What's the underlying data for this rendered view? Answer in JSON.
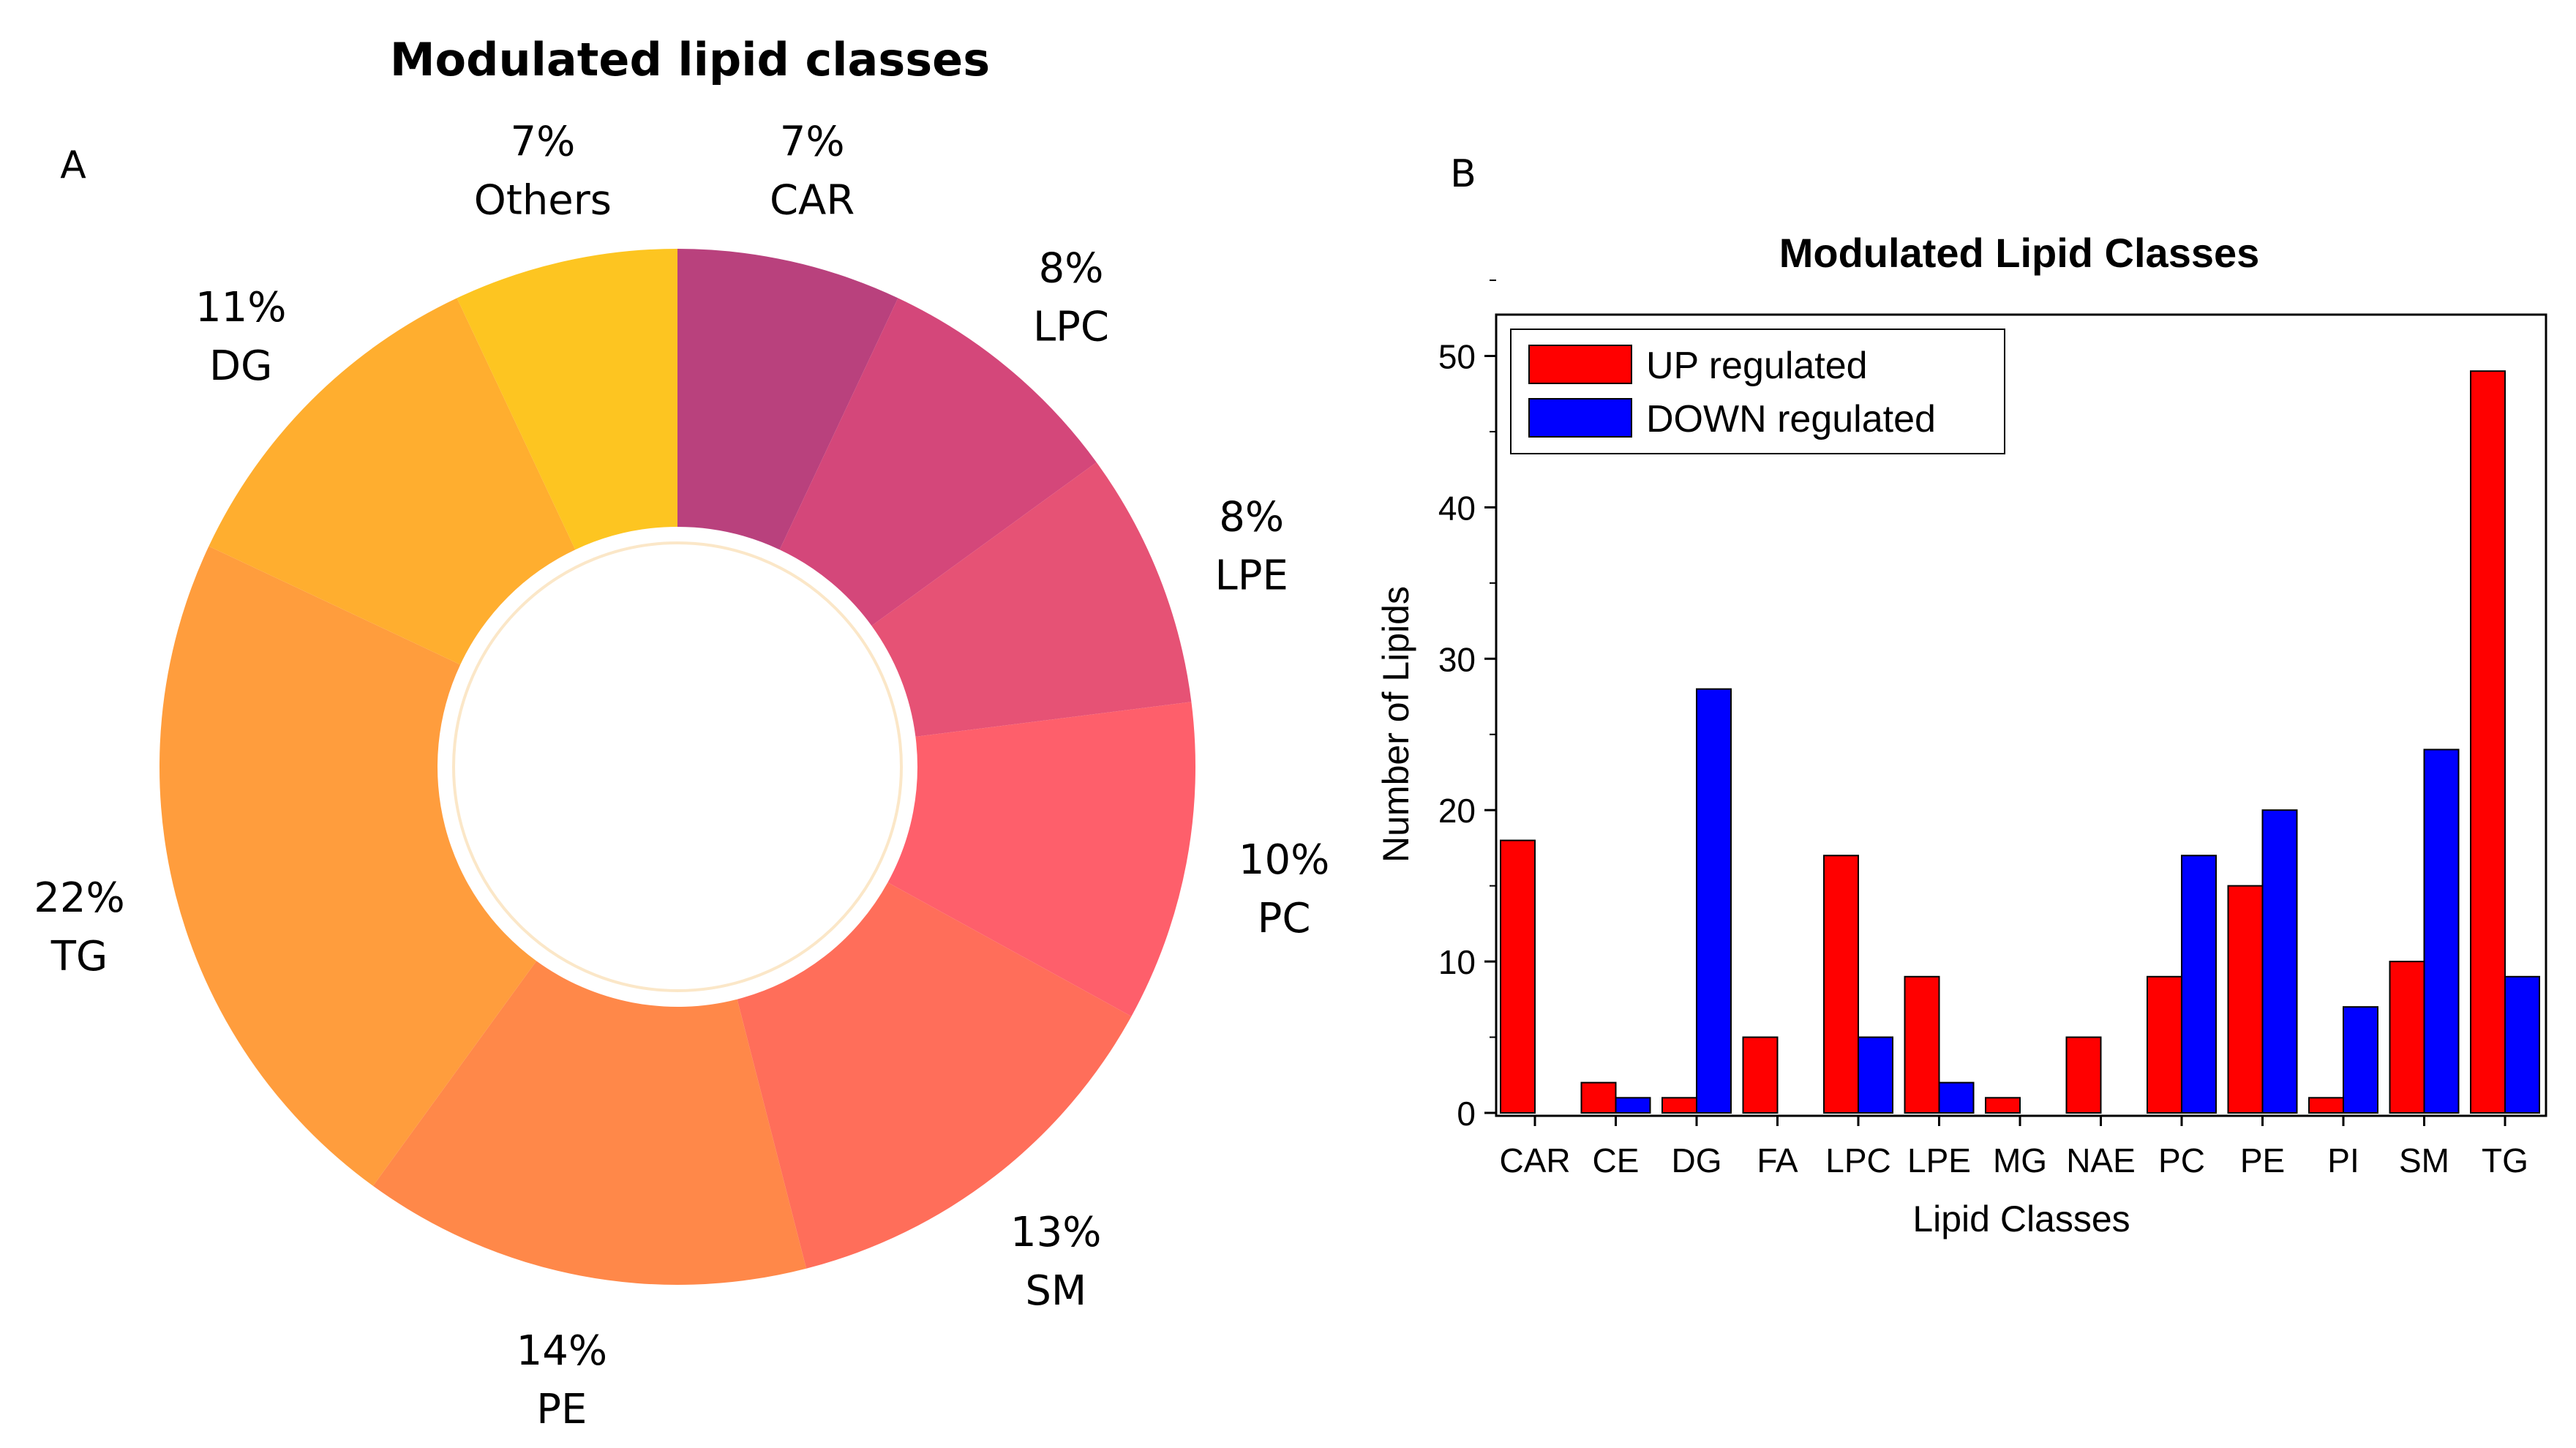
{
  "chart_data": [
    {
      "panel_label": "A",
      "type": "pie",
      "title": "Modulated lipid classes",
      "slices": [
        {
          "label": "CAR",
          "value": 7,
          "value_label": "7%",
          "color": "#b9417d"
        },
        {
          "label": "LPC",
          "value": 8,
          "value_label": "8%",
          "color": "#d4477a"
        },
        {
          "label": "LPE",
          "value": 8,
          "value_label": "8%",
          "color": "#e65275"
        },
        {
          "label": "PC",
          "value": 10,
          "value_label": "10%",
          "color": "#fe5f6b"
        },
        {
          "label": "SM",
          "value": 13,
          "value_label": "13%",
          "color": "#ff6e5a"
        },
        {
          "label": "PE",
          "value": 14,
          "value_label": "14%",
          "color": "#ff8849"
        },
        {
          "label": "TG",
          "value": 22,
          "value_label": "22%",
          "color": "#ff9d3d"
        },
        {
          "label": "DG",
          "value": 11,
          "value_label": "11%",
          "color": "#ffae2f"
        },
        {
          "label": "Others",
          "value": 7,
          "value_label": "7%",
          "color": "#fdc521"
        }
      ]
    },
    {
      "panel_label": "B",
      "type": "bar",
      "title": "Modulated Lipid Classes",
      "xlabel": "Lipid Classes",
      "ylabel": "Number of Lipids",
      "ylim": [
        0,
        52
      ],
      "yticks": [
        0,
        10,
        20,
        30,
        40,
        50
      ],
      "legend_position": "top-left",
      "categories": [
        "CAR",
        "CE",
        "DG",
        "FA",
        "LPC",
        "LPE",
        "MG",
        "NAE",
        "PC",
        "PE",
        "PI",
        "SM",
        "TG"
      ],
      "series": [
        {
          "name": "UP regulated",
          "color": "#ff0000",
          "values": [
            18,
            2,
            1,
            5,
            17,
            9,
            1,
            5,
            9,
            15,
            1,
            10,
            49
          ]
        },
        {
          "name": "DOWN regulated",
          "color": "#0000ff",
          "values": [
            0,
            1,
            28,
            0,
            5,
            2,
            0,
            0,
            17,
            20,
            7,
            24,
            9
          ]
        }
      ]
    }
  ]
}
